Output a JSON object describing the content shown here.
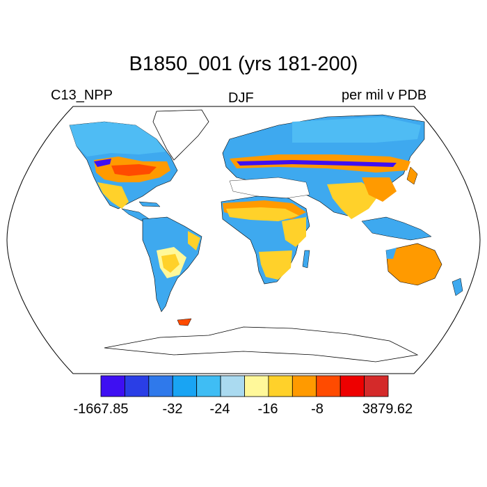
{
  "title": "B1850_001 (yrs 181-200)",
  "left_string": "C13_NPP",
  "center_string": "DJF",
  "right_string": "per mil v PDB",
  "colorbar": {
    "colors": [
      "#3e0ff2",
      "#2a3ee6",
      "#2f79eb",
      "#19a4f3",
      "#3fbdf4",
      "#aadaf0",
      "#fff89a",
      "#ffd12a",
      "#ff9a00",
      "#ff4b00",
      "#ee0000",
      "#d42a2a"
    ],
    "labels": [
      "-1667.85",
      "-32",
      "-24",
      "-16",
      "-8",
      "3879.62"
    ]
  },
  "palette": {
    "ocean": "#ffffff",
    "land_blue": "#3ea9ef",
    "land_light_blue": "#4fbcf4",
    "coast": "#000000"
  }
}
